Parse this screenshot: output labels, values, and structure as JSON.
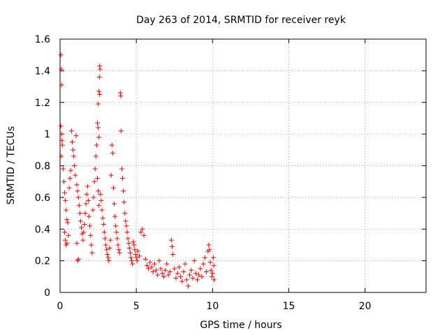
{
  "chart_data": {
    "type": "scatter",
    "title": "Day 263 of 2014, SRMTID for receiver reyk",
    "xlabel": "GPS time / hours",
    "ylabel": "SRMTID / TECUs",
    "xlim": [
      0,
      24
    ],
    "ylim": [
      0,
      1.6
    ],
    "xticks": [
      0,
      5,
      10,
      15,
      20
    ],
    "yticks": [
      0,
      0.2,
      0.4,
      0.6,
      0.8,
      1,
      1.2,
      1.4,
      1.6
    ],
    "xtick_labels": [
      "0",
      "5",
      "10",
      "15",
      "20"
    ],
    "ytick_labels": [
      "0",
      "0.2",
      "0.4",
      "0.6",
      "0.8",
      "1",
      "1.2",
      "1.4",
      "1.6"
    ],
    "grid": true,
    "marker": "+",
    "color": "#ff0000",
    "series": [
      {
        "name": "SRMTID",
        "points": [
          [
            0.05,
            1.5
          ],
          [
            0.08,
            1.41
          ],
          [
            0.1,
            1.31
          ],
          [
            0.05,
            1.05
          ],
          [
            0.1,
            1.0
          ],
          [
            0.12,
            0.96
          ],
          [
            0.15,
            0.93
          ],
          [
            0.08,
            0.86
          ],
          [
            0.2,
            0.78
          ],
          [
            0.25,
            0.7
          ],
          [
            0.3,
            0.63
          ],
          [
            0.35,
            0.58
          ],
          [
            0.4,
            0.52
          ],
          [
            0.45,
            0.46
          ],
          [
            0.5,
            0.44
          ],
          [
            0.3,
            0.38
          ],
          [
            0.35,
            0.33
          ],
          [
            0.4,
            0.3
          ],
          [
            0.45,
            0.31
          ],
          [
            0.55,
            0.36
          ],
          [
            0.6,
            0.66
          ],
          [
            0.65,
            0.72
          ],
          [
            0.7,
            0.77
          ],
          [
            0.75,
            1.02
          ],
          [
            0.8,
            0.95
          ],
          [
            0.85,
            0.9
          ],
          [
            0.9,
            0.86
          ],
          [
            0.95,
            0.8
          ],
          [
            1.0,
            0.74
          ],
          [
            1.05,
            0.99
          ],
          [
            1.1,
            0.68
          ],
          [
            1.15,
            0.64
          ],
          [
            1.2,
            0.6
          ],
          [
            1.25,
            0.55
          ],
          [
            1.3,
            0.5
          ],
          [
            1.35,
            0.45
          ],
          [
            1.4,
            0.41
          ],
          [
            1.45,
            0.37
          ],
          [
            1.1,
            0.31
          ],
          [
            1.15,
            0.2
          ],
          [
            1.2,
            0.21
          ],
          [
            1.5,
            0.33
          ],
          [
            1.55,
            0.38
          ],
          [
            1.6,
            0.43
          ],
          [
            1.65,
            0.5
          ],
          [
            1.7,
            0.56
          ],
          [
            1.75,
            0.62
          ],
          [
            1.8,
            0.67
          ],
          [
            1.85,
            0.58
          ],
          [
            1.9,
            0.48
          ],
          [
            1.95,
            0.42
          ],
          [
            2.0,
            0.36
          ],
          [
            2.05,
            0.3
          ],
          [
            2.1,
            0.25
          ],
          [
            2.15,
            0.52
          ],
          [
            2.2,
            0.6
          ],
          [
            2.25,
            0.7
          ],
          [
            2.3,
            0.78
          ],
          [
            2.35,
            0.86
          ],
          [
            2.4,
            0.93
          ],
          [
            2.45,
            0.72
          ],
          [
            2.5,
            0.64
          ],
          [
            2.55,
            0.55
          ],
          [
            2.6,
            1.43
          ],
          [
            2.62,
            1.41
          ],
          [
            2.58,
            1.36
          ],
          [
            2.55,
            1.27
          ],
          [
            2.6,
            1.25
          ],
          [
            2.5,
            1.19
          ],
          [
            2.45,
            1.07
          ],
          [
            2.5,
            1.04
          ],
          [
            2.55,
            0.98
          ],
          [
            2.65,
            0.62
          ],
          [
            2.7,
            0.58
          ],
          [
            2.75,
            0.52
          ],
          [
            2.8,
            0.47
          ],
          [
            2.85,
            0.43
          ],
          [
            2.9,
            0.38
          ],
          [
            2.95,
            0.34
          ],
          [
            3.0,
            0.3
          ],
          [
            3.05,
            0.27
          ],
          [
            3.1,
            0.24
          ],
          [
            3.15,
            0.22
          ],
          [
            3.2,
            0.2
          ],
          [
            3.25,
            0.28
          ],
          [
            3.3,
            0.33
          ],
          [
            3.35,
            0.74
          ],
          [
            3.4,
            0.93
          ],
          [
            3.45,
            0.88
          ],
          [
            3.5,
            0.66
          ],
          [
            3.55,
            0.56
          ],
          [
            3.6,
            0.48
          ],
          [
            3.65,
            0.42
          ],
          [
            3.7,
            0.38
          ],
          [
            3.75,
            0.34
          ],
          [
            3.8,
            0.3
          ],
          [
            3.85,
            0.27
          ],
          [
            3.9,
            0.25
          ],
          [
            3.95,
            1.26
          ],
          [
            3.98,
            1.24
          ],
          [
            4.0,
            1.02
          ],
          [
            4.05,
            0.78
          ],
          [
            4.1,
            0.72
          ],
          [
            4.15,
            0.64
          ],
          [
            4.2,
            0.57
          ],
          [
            4.25,
            0.5
          ],
          [
            4.3,
            0.45
          ],
          [
            4.35,
            0.42
          ],
          [
            4.4,
            0.38
          ],
          [
            4.45,
            0.34
          ],
          [
            4.5,
            0.31
          ],
          [
            4.55,
            0.28
          ],
          [
            4.6,
            0.25
          ],
          [
            4.65,
            0.22
          ],
          [
            4.7,
            0.2
          ],
          [
            4.75,
            0.18
          ],
          [
            4.8,
            0.32
          ],
          [
            4.85,
            0.3
          ],
          [
            4.9,
            0.27
          ],
          [
            4.95,
            0.24
          ],
          [
            5.0,
            0.22
          ],
          [
            5.05,
            0.2
          ],
          [
            5.1,
            0.26
          ],
          [
            5.2,
            0.23
          ],
          [
            5.3,
            0.38
          ],
          [
            5.4,
            0.4
          ],
          [
            5.5,
            0.36
          ],
          [
            5.6,
            0.21
          ],
          [
            5.7,
            0.17
          ],
          [
            5.8,
            0.15
          ],
          [
            5.9,
            0.19
          ],
          [
            6.0,
            0.16
          ],
          [
            6.1,
            0.13
          ],
          [
            6.2,
            0.18
          ],
          [
            6.3,
            0.14
          ],
          [
            6.4,
            0.11
          ],
          [
            6.5,
            0.2
          ],
          [
            6.6,
            0.15
          ],
          [
            6.7,
            0.12
          ],
          [
            6.8,
            0.1
          ],
          [
            6.9,
            0.14
          ],
          [
            7.0,
            0.18
          ],
          [
            7.1,
            0.11
          ],
          [
            7.2,
            0.13
          ],
          [
            7.3,
            0.33
          ],
          [
            7.35,
            0.29
          ],
          [
            7.4,
            0.24
          ],
          [
            7.5,
            0.15
          ],
          [
            7.6,
            0.09
          ],
          [
            7.7,
            0.12
          ],
          [
            7.8,
            0.16
          ],
          [
            7.9,
            0.1
          ],
          [
            8.0,
            0.07
          ],
          [
            8.1,
            0.13
          ],
          [
            8.2,
            0.18
          ],
          [
            8.3,
            0.08
          ],
          [
            8.4,
            0.04
          ],
          [
            8.5,
            0.11
          ],
          [
            8.6,
            0.14
          ],
          [
            8.7,
            0.09
          ],
          [
            8.8,
            0.2
          ],
          [
            8.9,
            0.12
          ],
          [
            9.0,
            0.08
          ],
          [
            9.1,
            0.11
          ],
          [
            9.2,
            0.15
          ],
          [
            9.3,
            0.1
          ],
          [
            9.4,
            0.18
          ],
          [
            9.5,
            0.22
          ],
          [
            9.6,
            0.13
          ],
          [
            9.7,
            0.26
          ],
          [
            9.75,
            0.3
          ],
          [
            9.8,
            0.27
          ],
          [
            9.85,
            0.19
          ],
          [
            9.9,
            0.14
          ],
          [
            9.95,
            0.1
          ],
          [
            10.0,
            0.12
          ],
          [
            10.05,
            0.22
          ],
          [
            10.08,
            0.17
          ],
          [
            10.1,
            0.08
          ]
        ]
      }
    ]
  }
}
